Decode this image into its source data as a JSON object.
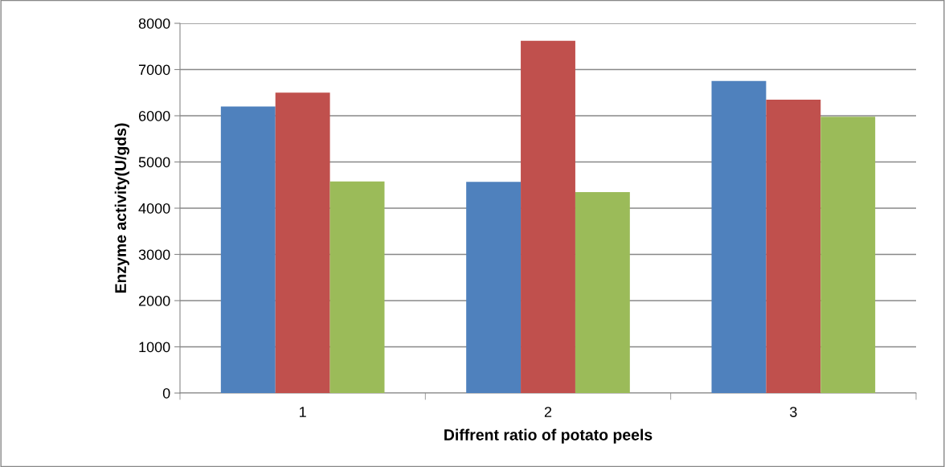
{
  "chart_data": {
    "type": "bar",
    "xlabel": "Diffrent ratio of potato peels",
    "ylabel": "Enzyme activity(U/gds)",
    "categories": [
      "1",
      "2",
      "3"
    ],
    "series": [
      {
        "color": "#4f81bd",
        "values": [
          6200,
          4570,
          6750
        ]
      },
      {
        "color": "#c0504d",
        "values": [
          6500,
          7620,
          6350
        ]
      },
      {
        "color": "#9bbb59",
        "values": [
          4580,
          4350,
          5980
        ]
      }
    ],
    "ylim": [
      0,
      8000
    ],
    "yticks": [
      0,
      1000,
      2000,
      3000,
      4000,
      5000,
      6000,
      7000,
      8000
    ],
    "grid": "y",
    "legend": false
  }
}
